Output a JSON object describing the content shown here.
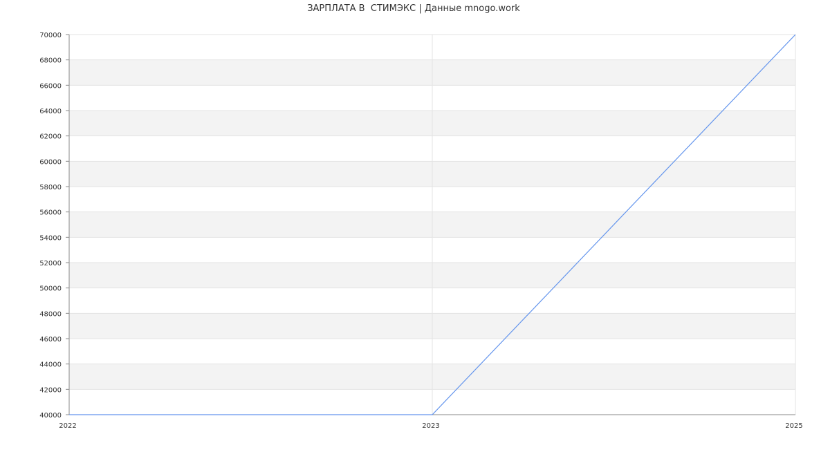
{
  "chart_data": {
    "type": "line",
    "title": "ЗАРПЛАТА В  СТИМЭКС | Данные mnogo.work",
    "categories": [
      "2022",
      "2023",
      "2025"
    ],
    "series": [
      {
        "values": [
          40000,
          40000,
          70000
        ],
        "color": "#6495ed"
      }
    ],
    "ylim": [
      40000,
      70000
    ],
    "ytick_step": 2000,
    "grid": true,
    "band_color": "#f3f3f3",
    "legend": "none"
  }
}
